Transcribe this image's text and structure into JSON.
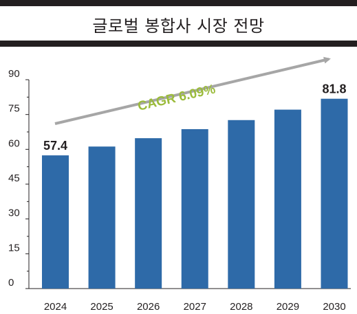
{
  "header": {
    "title": "글로벌 봉합사 시장 전망"
  },
  "chart_data": {
    "type": "bar",
    "title": "글로벌 봉합사 시장 전망",
    "categories": [
      "2024",
      "2025",
      "2026",
      "2027",
      "2028",
      "2029",
      "2030"
    ],
    "values": [
      57.4,
      61.2,
      64.8,
      68.7,
      72.6,
      77.1,
      81.8
    ],
    "data_labels": [
      {
        "category": "2024",
        "text": "57.4"
      },
      {
        "category": "2030",
        "text": "81.8"
      }
    ],
    "annotation": "CAGR 6.09%",
    "ylim": [
      0,
      90
    ],
    "yticks": [
      0,
      15,
      30,
      45,
      60,
      75,
      90
    ],
    "bar_color": "#2e6aa8",
    "annotation_color": "#9bbb3b",
    "arrow_color": "#a6a6a6",
    "grid": false,
    "legend": "none"
  }
}
